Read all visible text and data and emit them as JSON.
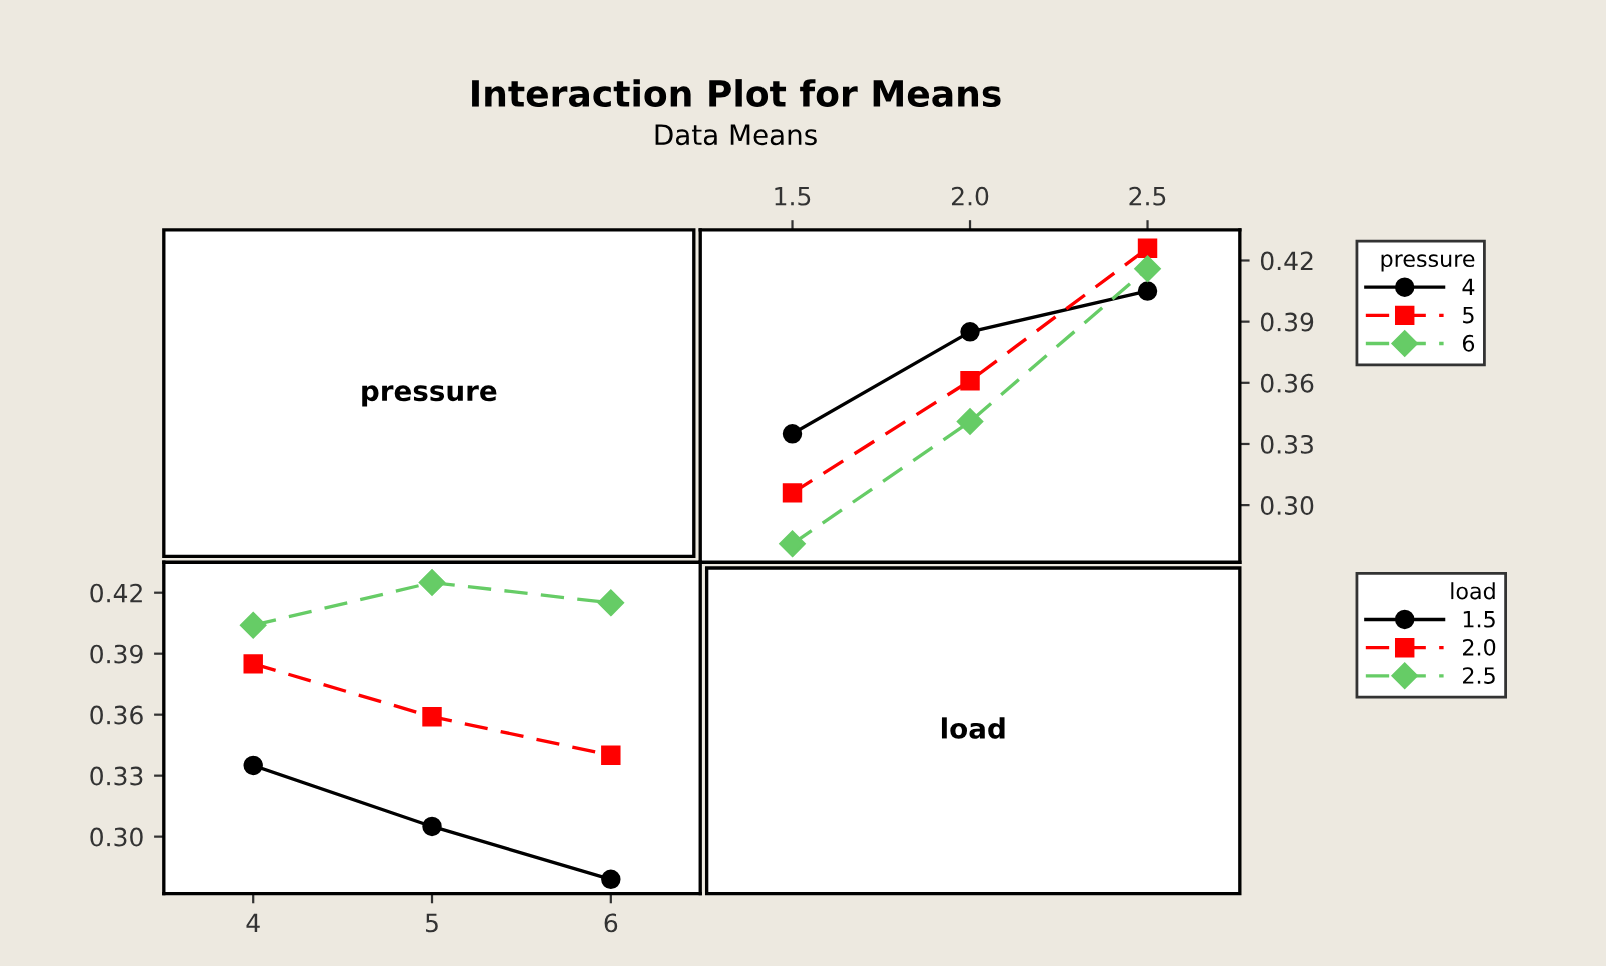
{
  "chart_data": [
    {
      "type": "other",
      "title": "Interaction Plot for Means",
      "subtitle": "Data Means",
      "annotations": [
        "pressure"
      ]
    },
    {
      "type": "line",
      "legend_title": "pressure",
      "legend": "right",
      "grid": false,
      "x": [
        1.5,
        2.0,
        2.5
      ],
      "xlim": [
        1.24,
        2.76
      ],
      "xticks": [
        {
          "value": 1.5,
          "label": "1.5"
        },
        {
          "value": 2.0,
          "label": "2.0"
        },
        {
          "value": 2.5,
          "label": "2.5"
        }
      ],
      "ylim": [
        0.272,
        0.435
      ],
      "yticks": [
        {
          "value": 0.3,
          "label": "0.30"
        },
        0.33,
        0.36,
        0.39,
        0.42
      ],
      "series": [
        {
          "name": "4",
          "color": "#000000",
          "marker": "circle",
          "line_style": "solid",
          "values": [
            0.335,
            0.385,
            0.405
          ]
        },
        {
          "name": "5",
          "color": "#ff0000",
          "marker": "square",
          "line_style": "dashed",
          "values": [
            0.306,
            0.361,
            0.426
          ]
        },
        {
          "name": "6",
          "color": "#66cc66",
          "marker": "diamond",
          "line_style": "dashed",
          "values": [
            0.281,
            0.341,
            0.416
          ]
        }
      ]
    },
    {
      "type": "line",
      "legend_title": "load",
      "legend": "right",
      "grid": false,
      "x": [
        4,
        5,
        6
      ],
      "xlim": [
        3.5,
        6.5
      ],
      "xticks": [
        4,
        5,
        6
      ],
      "ylim": [
        0.272,
        0.435
      ],
      "yticks": [
        {
          "value": 0.3,
          "label": "0.30"
        },
        0.33,
        0.36,
        0.39,
        0.42
      ],
      "series": [
        {
          "name": "1.5",
          "color": "#000000",
          "marker": "circle",
          "line_style": "solid",
          "values": [
            0.335,
            0.305,
            0.279
          ]
        },
        {
          "name": "2.0",
          "color": "#ff0000",
          "marker": "square",
          "line_style": "dashed",
          "values": [
            0.385,
            0.359,
            0.34
          ]
        },
        {
          "name": "2.5",
          "color": "#66cc66",
          "marker": "diamond",
          "line_style": "dashed",
          "values": [
            0.404,
            0.425,
            0.415
          ]
        }
      ]
    },
    {
      "type": "other",
      "annotations": [
        "load"
      ]
    }
  ]
}
